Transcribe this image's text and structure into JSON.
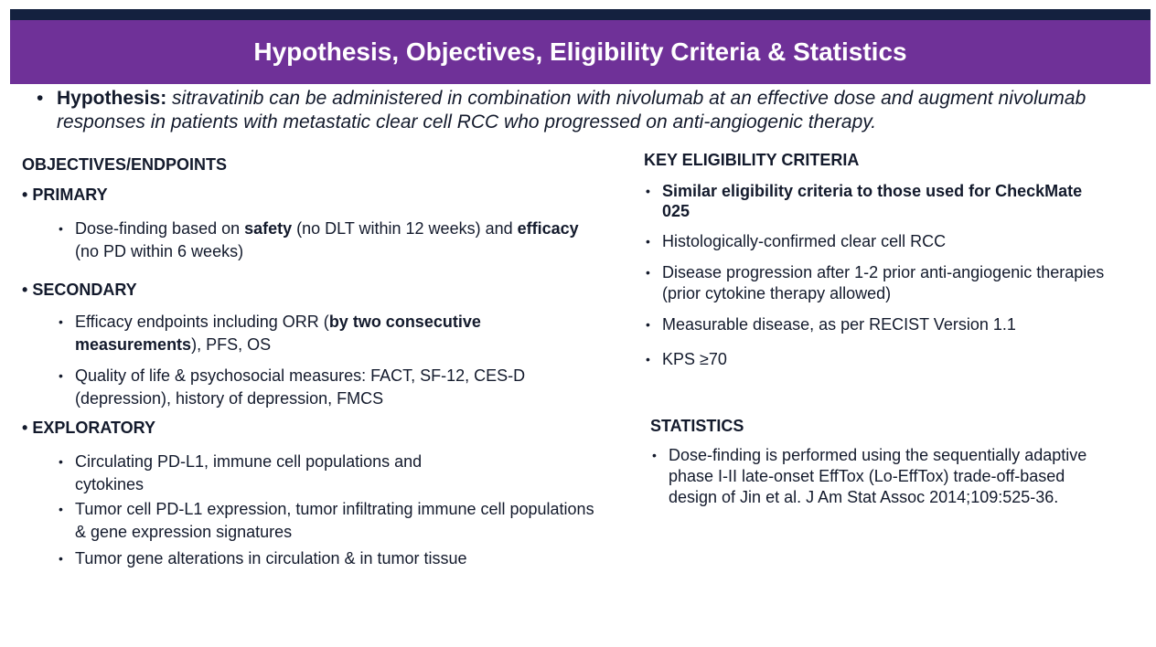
{
  "header": {
    "title": "Hypothesis, Objectives, Eligibility Criteria & Statistics"
  },
  "hypothesis": {
    "label": "Hypothesis:",
    "text": "sitravatinib can be administered in combination with nivolumab at an effective dose and augment nivolumab responses in patients with metastatic clear cell RCC who progressed on anti-angiogenic therapy."
  },
  "objectives": {
    "heading": "OBJECTIVES/ENDPOINTS",
    "primary": {
      "label": "PRIMARY",
      "items": [
        [
          "Dose-finding based on ",
          "safety",
          " (no DLT within 12 weeks) and ",
          "efficacy",
          " (no PD within 6 weeks)"
        ]
      ]
    },
    "secondary": {
      "label": "SECONDARY",
      "items": [
        [
          "Efficacy endpoints including ORR (",
          "by two consecutive measurements",
          "), PFS, OS"
        ],
        [
          "Quality of life & psychosocial measures: FACT, SF-12, CES-D (depression), history of depression, FMCS"
        ]
      ]
    },
    "exploratory": {
      "label": "EXPLORATORY",
      "items": [
        "Circulating PD-L1, immune cell populations and cytokines",
        "Tumor cell PD-L1 expression, tumor infiltrating immune cell populations & gene expression signatures",
        "Tumor gene alterations in circulation & in tumor tissue"
      ]
    }
  },
  "eligibility": {
    "heading": "KEY ELIGIBILITY CRITERIA",
    "items": [
      "Similar eligibility criteria to those used for CheckMate 025",
      "Histologically-confirmed clear cell RCC",
      "Disease progression after 1-2 prior anti-angiogenic therapies (prior cytokine therapy allowed)",
      "Measurable disease, as per RECIST Version 1.1",
      "KPS ≥70"
    ]
  },
  "statistics": {
    "heading": "STATISTICS",
    "items": [
      "Dose-finding is performed using the sequentially adaptive phase I-II late-onset EffTox (Lo-EffTox) trade-off-based design of Jin et al. J Am Stat Assoc 2014;109:525-36."
    ]
  }
}
